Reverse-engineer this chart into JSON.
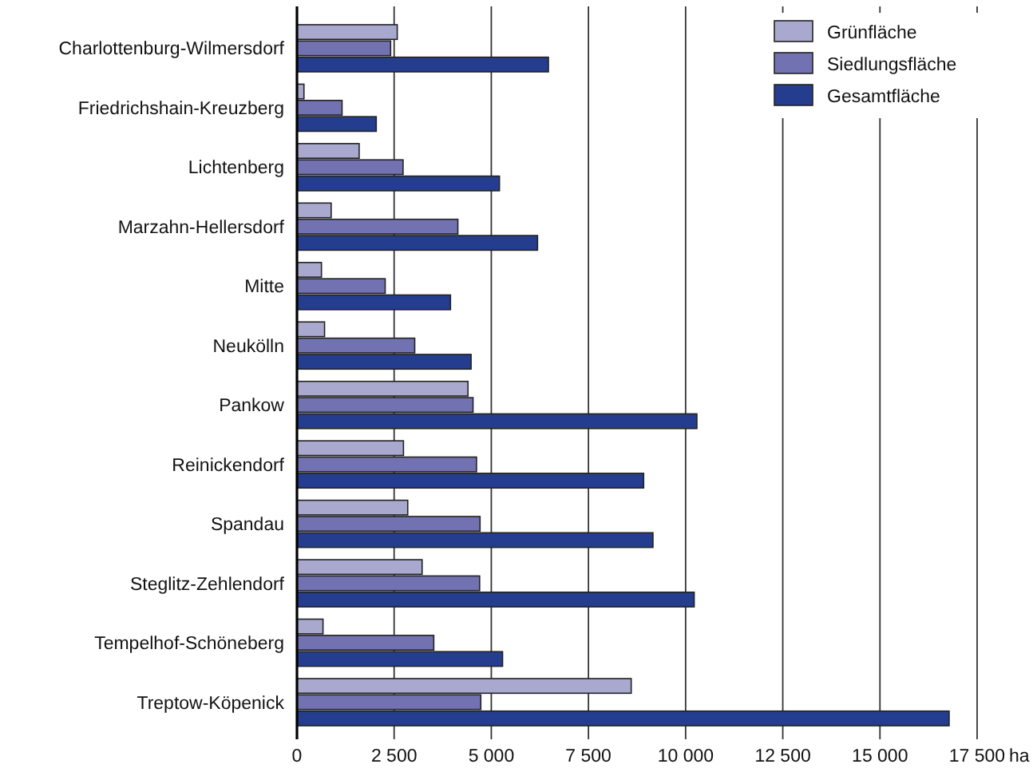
{
  "chart_data": {
    "type": "bar",
    "orientation": "horizontal",
    "xlabel": "ha",
    "categories": [
      "Charlottenburg-Wilmersdorf",
      "Friedrichshain-Kreuzberg",
      "Lichtenberg",
      "Marzahn-Hellersdorf",
      "Mitte",
      "Neukölln",
      "Pankow",
      "Reinickendorf",
      "Spandau",
      "Steglitz-Zehlendorf",
      "Tempelhof-Schöneberg",
      "Treptow-Köpenick"
    ],
    "series": [
      {
        "name": "Grünfläche",
        "color": "#a9a9d0",
        "values": [
          2580,
          180,
          1600,
          880,
          630,
          710,
          4400,
          2740,
          2850,
          3220,
          670,
          8600
        ]
      },
      {
        "name": "Siedlungsfläche",
        "color": "#7272b2",
        "values": [
          2410,
          1160,
          2730,
          4140,
          2270,
          3030,
          4530,
          4620,
          4710,
          4700,
          3520,
          4730
        ]
      },
      {
        "name": "Gesamtfläche",
        "color": "#253d8e",
        "values": [
          6470,
          2040,
          5210,
          6190,
          3950,
          4480,
          10290,
          8920,
          9160,
          10220,
          5290,
          16780
        ]
      }
    ],
    "xlim": [
      0,
      17500
    ],
    "xticks": [
      0,
      {
        "value": 2500,
        "label": "2 500"
      },
      {
        "value": 5000,
        "label": "5 000"
      },
      {
        "value": 7500,
        "label": "7 500"
      },
      {
        "value": 10000,
        "label": "10 000"
      },
      {
        "value": 12500,
        "label": "12 500"
      },
      {
        "value": 15000,
        "label": "15 000"
      },
      {
        "value": 17500,
        "label": "17 500"
      }
    ],
    "grid": "x",
    "legend": "top right"
  }
}
